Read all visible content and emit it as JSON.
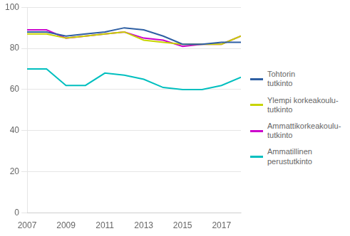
{
  "chart_data": {
    "type": "line",
    "x": [
      2007,
      2008,
      2009,
      2010,
      2011,
      2012,
      2013,
      2014,
      2015,
      2016,
      2017,
      2018
    ],
    "series": [
      {
        "name": "Tohtorin\ntutkinto",
        "color": "#2E5FA3",
        "values": [
          88,
          88,
          86,
          87,
          88,
          90,
          89,
          86,
          82,
          82,
          83,
          83
        ]
      },
      {
        "name": "Ylempi korkeakoulu-\ntutkinto",
        "color": "#C8D400",
        "values": [
          87,
          87,
          85,
          86,
          87,
          88,
          84,
          83,
          82,
          82,
          82,
          86
        ]
      },
      {
        "name": "Ammattikorkeakoulu-\ntutkinto",
        "color": "#CC00CC",
        "values": [
          89,
          89,
          85,
          86,
          87,
          88,
          85,
          84,
          81,
          82,
          82,
          86
        ]
      },
      {
        "name": "Ammatillinen\nperustutkinto",
        "color": "#00BFBF",
        "values": [
          70,
          70,
          62,
          62,
          68,
          67,
          65,
          61,
          60,
          60,
          62,
          66
        ]
      }
    ],
    "xlim": [
      2007,
      2018
    ],
    "xticks": [
      2007,
      2009,
      2011,
      2013,
      2015,
      2017
    ],
    "ylim": [
      0,
      100
    ],
    "yticks": [
      0,
      20,
      40,
      60,
      80,
      100
    ],
    "grid": "y",
    "legend": "right"
  }
}
